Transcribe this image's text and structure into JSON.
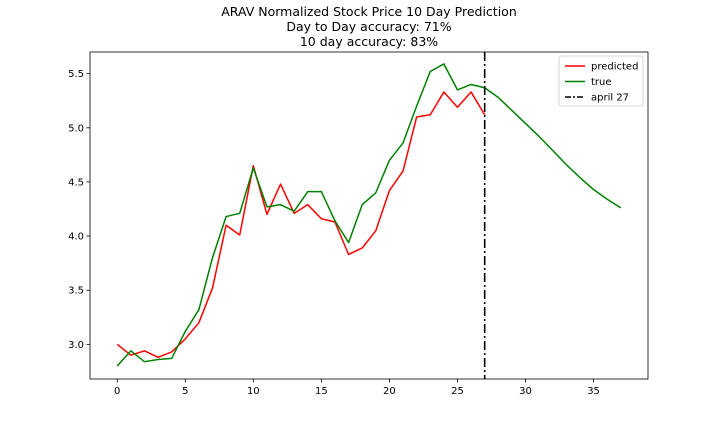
{
  "chart_data": {
    "type": "line",
    "title_lines": [
      "ARAV Normalized Stock Price 10 Day Prediction",
      "Day to Day accuracy: 71%",
      "10 day accuracy: 83%"
    ],
    "xlabel": "",
    "ylabel": "",
    "xlim": [
      -2,
      39
    ],
    "ylim": [
      2.68,
      5.7
    ],
    "xticks": [
      0,
      5,
      10,
      15,
      20,
      25,
      30,
      35
    ],
    "yticks": [
      3.0,
      3.5,
      4.0,
      4.5,
      5.0,
      5.5
    ],
    "grid": false,
    "legend_position": "top-right",
    "series": [
      {
        "name": "predicted",
        "color": "#ff0000",
        "style": "solid",
        "x": [
          0,
          1,
          2,
          3,
          4,
          5,
          6,
          7,
          8,
          9,
          10,
          11,
          12,
          13,
          14,
          15,
          16,
          17,
          18,
          19,
          20,
          21,
          22,
          23,
          24,
          25,
          26,
          27
        ],
        "y": [
          3.0,
          2.9,
          2.94,
          2.88,
          2.93,
          3.05,
          3.2,
          3.52,
          4.1,
          4.01,
          4.65,
          4.2,
          4.48,
          4.21,
          4.29,
          4.16,
          4.13,
          3.83,
          3.89,
          4.05,
          4.42,
          4.6,
          5.1,
          5.12,
          5.33,
          5.19,
          5.33,
          5.12
        ]
      },
      {
        "name": "true",
        "color": "#008000",
        "style": "solid",
        "x": [
          0,
          1,
          2,
          3,
          4,
          5,
          6,
          7,
          8,
          9,
          10,
          11,
          12,
          13,
          14,
          15,
          16,
          17,
          18,
          19,
          20,
          21,
          22,
          23,
          24,
          25,
          26,
          27,
          28,
          29,
          30,
          31,
          32,
          33,
          34,
          35,
          36,
          37
        ],
        "y": [
          2.8,
          2.94,
          2.84,
          2.86,
          2.87,
          3.12,
          3.32,
          3.8,
          4.18,
          4.21,
          4.63,
          4.27,
          4.29,
          4.23,
          4.41,
          4.41,
          4.14,
          3.94,
          4.29,
          4.4,
          4.7,
          4.86,
          5.2,
          5.52,
          5.59,
          5.35,
          5.4,
          5.37,
          5.28,
          5.16,
          5.04,
          4.92,
          4.79,
          4.66,
          4.54,
          4.43,
          4.34,
          4.26
        ]
      },
      {
        "name": "april 27",
        "color": "#000000",
        "style": "dashdot",
        "vline_x": 27
      }
    ]
  }
}
